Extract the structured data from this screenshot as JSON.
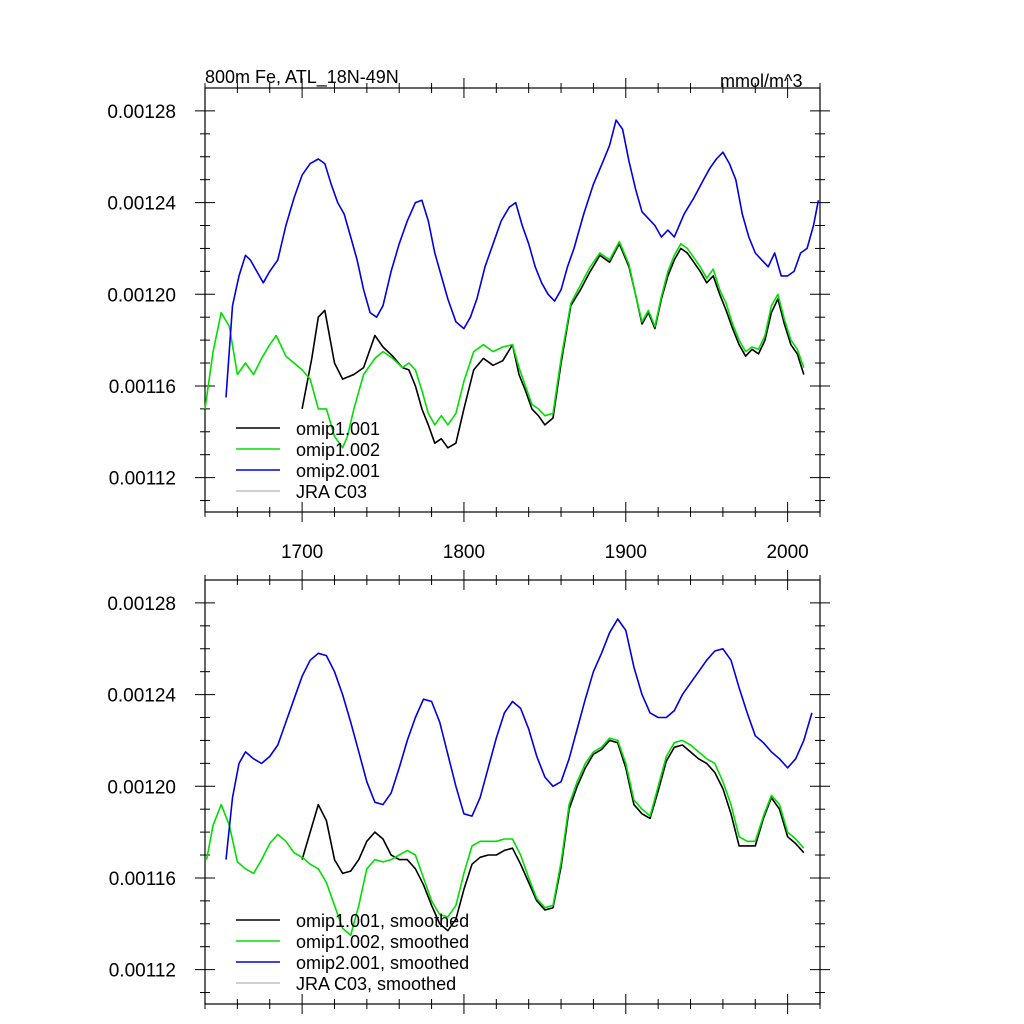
{
  "chart_data": [
    {
      "type": "line",
      "title_left": "800m Fe, ATL_18N-49N",
      "title_right": "mmol/m^3",
      "xlim": [
        1640,
        2020
      ],
      "ylim": [
        0.001105,
        0.00129
      ],
      "y_ticks": [
        "0.00112",
        "0.00116",
        "0.00120",
        "0.00124",
        "0.00128"
      ],
      "x_ticks": [
        "1700",
        "1800",
        "1900",
        "2000"
      ],
      "series": [
        {
          "name": "omip1.001",
          "color": "#000000",
          "x": [
            1700,
            1706,
            1710,
            1714,
            1720,
            1725,
            1732,
            1738,
            1745,
            1750,
            1756,
            1762,
            1766,
            1770,
            1774,
            1778,
            1782,
            1786,
            1790,
            1795,
            1800,
            1806,
            1812,
            1818,
            1824,
            1830,
            1834,
            1838,
            1842,
            1846,
            1850,
            1855,
            1860,
            1866,
            1872,
            1878,
            1884,
            1890,
            1896,
            1902,
            1906,
            1910,
            1914,
            1918,
            1922,
            1926,
            1930,
            1934,
            1938,
            1942,
            1946,
            1950,
            1954,
            1958,
            1962,
            1966,
            1970,
            1974,
            1978,
            1982,
            1986,
            1990,
            1994,
            1998,
            2002,
            2006,
            2010
          ],
          "y": [
            0.00115,
            0.001172,
            0.00119,
            0.001193,
            0.00117,
            0.001163,
            0.001165,
            0.001168,
            0.001182,
            0.001177,
            0.001173,
            0.001168,
            0.001167,
            0.00116,
            0.00115,
            0.001143,
            0.001135,
            0.001137,
            0.001133,
            0.001135,
            0.00115,
            0.001167,
            0.001172,
            0.001169,
            0.001171,
            0.001178,
            0.001165,
            0.001158,
            0.00115,
            0.001147,
            0.001143,
            0.001146,
            0.00117,
            0.001195,
            0.001202,
            0.00121,
            0.001217,
            0.001214,
            0.001222,
            0.001212,
            0.0012,
            0.001187,
            0.001192,
            0.001185,
            0.001198,
            0.001208,
            0.001215,
            0.00122,
            0.001218,
            0.001214,
            0.00121,
            0.001205,
            0.001208,
            0.0012,
            0.001193,
            0.001185,
            0.001178,
            0.001173,
            0.001176,
            0.001174,
            0.00118,
            0.001192,
            0.001198,
            0.001187,
            0.001178,
            0.001174,
            0.001165
          ]
        },
        {
          "name": "omip1.002",
          "color": "#00e000",
          "x": [
            1640,
            1645,
            1650,
            1655,
            1660,
            1665,
            1670,
            1675,
            1680,
            1684,
            1690,
            1695,
            1700,
            1705,
            1710,
            1715,
            1720,
            1725,
            1728,
            1732,
            1738,
            1745,
            1750,
            1756,
            1762,
            1766,
            1770,
            1774,
            1778,
            1782,
            1786,
            1790,
            1795,
            1800,
            1806,
            1812,
            1818,
            1824,
            1830,
            1834,
            1838,
            1842,
            1846,
            1850,
            1855,
            1860,
            1866,
            1872,
            1878,
            1884,
            1890,
            1896,
            1902,
            1906,
            1910,
            1914,
            1918,
            1922,
            1926,
            1930,
            1934,
            1938,
            1942,
            1946,
            1950,
            1954,
            1958,
            1962,
            1966,
            1970,
            1974,
            1978,
            1982,
            1986,
            1990,
            1994,
            1998,
            2002,
            2006,
            2010
          ],
          "y": [
            0.00115,
            0.001175,
            0.001192,
            0.001186,
            0.001165,
            0.00117,
            0.001165,
            0.001172,
            0.001178,
            0.001182,
            0.001173,
            0.00117,
            0.001167,
            0.001163,
            0.00115,
            0.00115,
            0.001138,
            0.001133,
            0.001138,
            0.00115,
            0.001165,
            0.001172,
            0.001175,
            0.001172,
            0.001168,
            0.00117,
            0.001167,
            0.001158,
            0.001148,
            0.001143,
            0.001147,
            0.001143,
            0.001148,
            0.001162,
            0.001175,
            0.001178,
            0.001175,
            0.001177,
            0.001178,
            0.001168,
            0.00116,
            0.001152,
            0.00115,
            0.001147,
            0.001148,
            0.001172,
            0.001196,
            0.001204,
            0.001212,
            0.001218,
            0.001215,
            0.001223,
            0.001213,
            0.0012,
            0.001188,
            0.001193,
            0.001186,
            0.001199,
            0.00121,
            0.001217,
            0.001222,
            0.00122,
            0.001216,
            0.001212,
            0.001207,
            0.001211,
            0.001202,
            0.001196,
            0.001187,
            0.00118,
            0.001175,
            0.001177,
            0.001176,
            0.001182,
            0.001195,
            0.0012,
            0.001189,
            0.00118,
            0.001176,
            0.001168
          ]
        },
        {
          "name": "omip2.001",
          "color": "#0000e0",
          "x": [
            1653,
            1657,
            1661,
            1665,
            1668,
            1672,
            1676,
            1680,
            1685,
            1690,
            1695,
            1700,
            1705,
            1710,
            1714,
            1718,
            1722,
            1726,
            1730,
            1734,
            1738,
            1742,
            1746,
            1750,
            1755,
            1760,
            1765,
            1770,
            1774,
            1778,
            1782,
            1786,
            1790,
            1795,
            1800,
            1804,
            1808,
            1813,
            1818,
            1823,
            1828,
            1832,
            1836,
            1840,
            1844,
            1848,
            1852,
            1856,
            1860,
            1864,
            1868,
            1874,
            1880,
            1886,
            1890,
            1894,
            1898,
            1902,
            1906,
            1910,
            1914,
            1918,
            1922,
            1926,
            1930,
            1936,
            1942,
            1948,
            1952,
            1956,
            1960,
            1964,
            1968,
            1972,
            1976,
            1980,
            1984,
            1988,
            1992,
            1996,
            2000,
            2004,
            2008,
            2012,
            2016,
            2019
          ],
          "y": [
            0.001155,
            0.001195,
            0.001208,
            0.001217,
            0.001215,
            0.00121,
            0.001205,
            0.00121,
            0.001215,
            0.00123,
            0.001242,
            0.001252,
            0.001257,
            0.001259,
            0.001257,
            0.001248,
            0.00124,
            0.001235,
            0.001225,
            0.001215,
            0.001202,
            0.001192,
            0.00119,
            0.001195,
            0.00121,
            0.001222,
            0.001232,
            0.00124,
            0.001241,
            0.001232,
            0.001218,
            0.001208,
            0.001198,
            0.001188,
            0.001185,
            0.00119,
            0.001198,
            0.001212,
            0.001222,
            0.001232,
            0.001238,
            0.00124,
            0.00123,
            0.001222,
            0.001212,
            0.001205,
            0.0012,
            0.001197,
            0.001202,
            0.001212,
            0.00122,
            0.001235,
            0.001248,
            0.001258,
            0.001265,
            0.001276,
            0.001272,
            0.001258,
            0.001246,
            0.001236,
            0.001233,
            0.00123,
            0.001225,
            0.001228,
            0.001225,
            0.001235,
            0.001242,
            0.00125,
            0.001255,
            0.001259,
            0.001262,
            0.001257,
            0.00125,
            0.001235,
            0.001225,
            0.001218,
            0.001215,
            0.001212,
            0.001218,
            0.001208,
            0.001208,
            0.00121,
            0.001218,
            0.00122,
            0.00123,
            0.001241
          ]
        },
        {
          "name": "JRA C03",
          "color": "#c0c0c0",
          "x": [],
          "y": []
        }
      ]
    },
    {
      "type": "line",
      "xlim": [
        1640,
        2020
      ],
      "ylim": [
        0.001105,
        0.00129
      ],
      "y_ticks": [
        "0.00112",
        "0.00116",
        "0.00120",
        "0.00124",
        "0.00128"
      ],
      "series": [
        {
          "name": "omip1.001, smoothed",
          "color": "#000000",
          "x": [
            1700,
            1705,
            1710,
            1715,
            1720,
            1725,
            1730,
            1735,
            1740,
            1745,
            1750,
            1755,
            1760,
            1765,
            1770,
            1775,
            1780,
            1785,
            1790,
            1795,
            1800,
            1805,
            1810,
            1815,
            1820,
            1825,
            1830,
            1835,
            1840,
            1845,
            1850,
            1855,
            1860,
            1865,
            1870,
            1875,
            1880,
            1885,
            1890,
            1895,
            1900,
            1905,
            1910,
            1915,
            1920,
            1925,
            1930,
            1935,
            1940,
            1945,
            1950,
            1955,
            1960,
            1965,
            1970,
            1975,
            1980,
            1985,
            1990,
            1995,
            2000,
            2005,
            2010
          ],
          "y": [
            0.001168,
            0.00118,
            0.001192,
            0.001185,
            0.001168,
            0.001162,
            0.001163,
            0.001168,
            0.001176,
            0.00118,
            0.001177,
            0.00117,
            0.001168,
            0.001168,
            0.001164,
            0.001157,
            0.001148,
            0.00114,
            0.001137,
            0.001142,
            0.001155,
            0.001166,
            0.001169,
            0.00117,
            0.00117,
            0.001172,
            0.001173,
            0.001166,
            0.001158,
            0.00115,
            0.001146,
            0.001147,
            0.001165,
            0.00119,
            0.0012,
            0.001208,
            0.001214,
            0.001216,
            0.00122,
            0.001219,
            0.001208,
            0.001192,
            0.001188,
            0.001186,
            0.001198,
            0.001211,
            0.001217,
            0.001218,
            0.001215,
            0.001212,
            0.00121,
            0.001206,
            0.001199,
            0.001188,
            0.001174,
            0.001174,
            0.001174,
            0.001186,
            0.001195,
            0.00119,
            0.001178,
            0.001175,
            0.001171
          ]
        },
        {
          "name": "omip1.002, smoothed",
          "color": "#00e000",
          "x": [
            1641,
            1645,
            1650,
            1655,
            1660,
            1665,
            1670,
            1675,
            1680,
            1685,
            1690,
            1695,
            1700,
            1705,
            1710,
            1715,
            1720,
            1725,
            1730,
            1735,
            1740,
            1745,
            1750,
            1755,
            1760,
            1765,
            1770,
            1775,
            1780,
            1785,
            1790,
            1795,
            1800,
            1805,
            1810,
            1815,
            1820,
            1825,
            1830,
            1835,
            1840,
            1845,
            1850,
            1855,
            1860,
            1865,
            1870,
            1875,
            1880,
            1885,
            1890,
            1895,
            1900,
            1905,
            1910,
            1915,
            1920,
            1925,
            1930,
            1935,
            1940,
            1945,
            1950,
            1955,
            1960,
            1965,
            1970,
            1975,
            1980,
            1985,
            1990,
            1995,
            2000,
            2005,
            2010
          ],
          "y": [
            0.001168,
            0.001183,
            0.001192,
            0.001183,
            0.001167,
            0.001164,
            0.001162,
            0.001168,
            0.001175,
            0.001179,
            0.001176,
            0.001171,
            0.001169,
            0.001166,
            0.001164,
            0.001158,
            0.001148,
            0.001138,
            0.001135,
            0.001148,
            0.001164,
            0.001168,
            0.001167,
            0.001168,
            0.00117,
            0.001172,
            0.00117,
            0.00116,
            0.00115,
            0.001144,
            0.001143,
            0.001148,
            0.001162,
            0.001174,
            0.001176,
            0.001176,
            0.001176,
            0.001177,
            0.001177,
            0.00117,
            0.00116,
            0.001151,
            0.001147,
            0.001148,
            0.001167,
            0.001192,
            0.001202,
            0.00121,
            0.001215,
            0.001217,
            0.001221,
            0.00122,
            0.00121,
            0.001194,
            0.00119,
            0.001187,
            0.0012,
            0.001213,
            0.001219,
            0.00122,
            0.001218,
            0.001215,
            0.001212,
            0.00121,
            0.001202,
            0.001192,
            0.001178,
            0.001176,
            0.001176,
            0.001187,
            0.001196,
            0.001192,
            0.00118,
            0.001177,
            0.001173
          ]
        },
        {
          "name": "omip2.001, smoothed",
          "color": "#0000e0",
          "x": [
            1653,
            1657,
            1661,
            1665,
            1670,
            1675,
            1680,
            1685,
            1690,
            1695,
            1700,
            1705,
            1710,
            1715,
            1720,
            1725,
            1730,
            1735,
            1740,
            1745,
            1750,
            1755,
            1760,
            1765,
            1770,
            1775,
            1780,
            1785,
            1790,
            1795,
            1800,
            1805,
            1810,
            1815,
            1820,
            1825,
            1830,
            1835,
            1840,
            1845,
            1850,
            1855,
            1860,
            1865,
            1870,
            1875,
            1880,
            1885,
            1890,
            1895,
            1900,
            1905,
            1910,
            1915,
            1920,
            1925,
            1930,
            1935,
            1940,
            1945,
            1950,
            1955,
            1960,
            1965,
            1970,
            1975,
            1980,
            1985,
            1990,
            1995,
            2000,
            2005,
            2010,
            2015
          ],
          "y": [
            0.001168,
            0.001195,
            0.00121,
            0.001215,
            0.001212,
            0.00121,
            0.001213,
            0.001218,
            0.001228,
            0.001238,
            0.001248,
            0.001255,
            0.001258,
            0.001257,
            0.00125,
            0.00124,
            0.001228,
            0.001215,
            0.001202,
            0.001193,
            0.001192,
            0.001197,
            0.001208,
            0.00122,
            0.00123,
            0.001238,
            0.001237,
            0.001228,
            0.001214,
            0.0012,
            0.001188,
            0.001187,
            0.001195,
            0.001208,
            0.001221,
            0.001232,
            0.001237,
            0.001234,
            0.001225,
            0.001213,
            0.001204,
            0.0012,
            0.001202,
            0.001212,
            0.001225,
            0.001238,
            0.00125,
            0.001258,
            0.001267,
            0.001273,
            0.001268,
            0.001252,
            0.00124,
            0.001232,
            0.00123,
            0.00123,
            0.001233,
            0.00124,
            0.001245,
            0.00125,
            0.001255,
            0.001259,
            0.00126,
            0.001255,
            0.001243,
            0.001232,
            0.001222,
            0.001219,
            0.001215,
            0.001212,
            0.001208,
            0.001212,
            0.00122,
            0.001232
          ]
        },
        {
          "name": "JRA C03, smoothed",
          "color": "#c0c0c0",
          "x": [],
          "y": []
        }
      ]
    }
  ]
}
